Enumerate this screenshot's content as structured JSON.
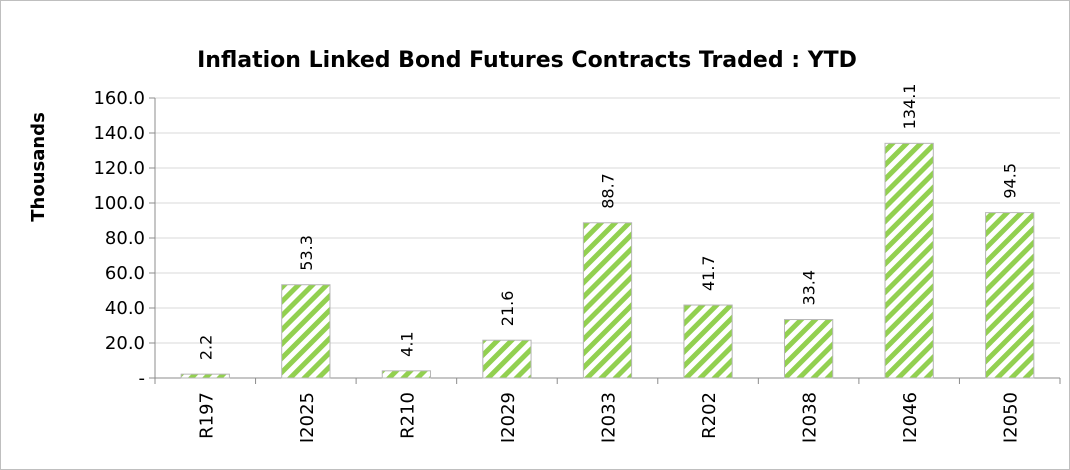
{
  "chart_data": {
    "type": "bar",
    "title": "Inflation Linked Bond Futures Contracts Traded : YTD",
    "ylabel": "Thousands",
    "xlabel": "",
    "ylim": [
      0,
      160
    ],
    "yticks": [
      0,
      20,
      40,
      60,
      80,
      100,
      120,
      140,
      160
    ],
    "ytick_labels": [
      "-",
      "20.0",
      "40.0",
      "60.0",
      "80.0",
      "100.0",
      "120.0",
      "140.0",
      "160.0"
    ],
    "categories": [
      "R197",
      "I2025",
      "R210",
      "I2029",
      "I2033",
      "R202",
      "I2038",
      "I2046",
      "I2050"
    ],
    "values": [
      2.2,
      53.3,
      4.1,
      21.6,
      88.7,
      41.7,
      33.4,
      134.1,
      94.5
    ],
    "data_labels": [
      "2.2",
      "53.3",
      "4.1",
      "21.6",
      "88.7",
      "41.7",
      "33.4",
      "134.1",
      "94.5"
    ],
    "grid": true,
    "legend": "none",
    "bar_fill_pattern": "diagonal-stripes",
    "bar_color": "#92d050"
  }
}
